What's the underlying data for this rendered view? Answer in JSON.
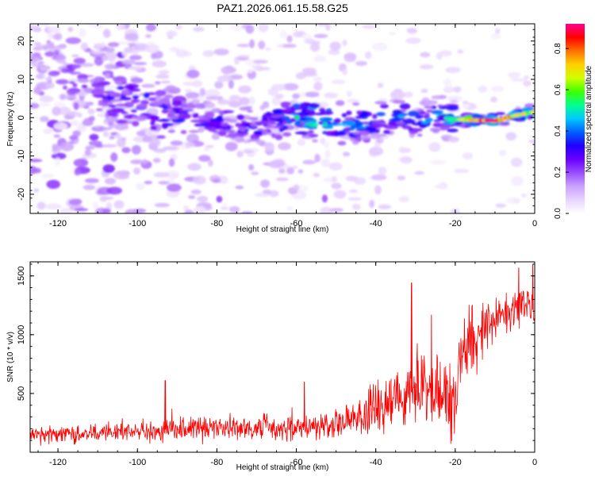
{
  "title": "PAZ1.2026.061.15.58.G25",
  "chart_data": [
    {
      "type": "heatmap",
      "xlabel": "Height of straight line (km)",
      "ylabel": "Frequency (Hz)",
      "xlim": [
        -127,
        0
      ],
      "ylim": [
        -25,
        24.5
      ],
      "xticks": [
        -120,
        -100,
        -80,
        -60,
        -40,
        -20,
        0
      ],
      "yticks": [
        -20,
        -10,
        0,
        10,
        20
      ],
      "colorbar": {
        "label": "Normalized spectral amplitude",
        "range": [
          0,
          0.92
        ],
        "ticks": [
          "0.0",
          "0.2",
          "0.4",
          "0.6",
          "0.8"
        ],
        "tick_values": [
          0.0,
          0.2,
          0.4,
          0.6,
          0.8
        ],
        "colormap": [
          "#ffffff",
          "#e8d4ff",
          "#c9a3ff",
          "#9a4dff",
          "#6a00ff",
          "#2000ff",
          "#0060ff",
          "#00c8ff",
          "#00ff90",
          "#40ff00",
          "#d0ff00",
          "#ffd000",
          "#ff7000",
          "#ff0000",
          "#ff0090"
        ]
      },
      "ridge": {
        "x": [
          -127,
          -115,
          -105,
          -95,
          -85,
          -75,
          -70,
          -65,
          -60,
          -55,
          -50,
          -45,
          -40,
          -35,
          -30,
          -25,
          -20,
          -15,
          -10,
          -5,
          0
        ],
        "y": [
          18,
          9,
          5,
          1.5,
          0,
          -2,
          -3,
          -0.5,
          0.5,
          0,
          -1.5,
          -2,
          -1.5,
          0.5,
          -0.5,
          0.5,
          -0.5,
          -0.7,
          -0.8,
          0.5,
          1.5
        ],
        "amplitude": [
          0.15,
          0.3,
          0.4,
          0.42,
          0.42,
          0.38,
          0.42,
          0.45,
          0.6,
          0.68,
          0.55,
          0.5,
          0.5,
          0.52,
          0.55,
          0.58,
          0.6,
          0.8,
          0.9,
          0.75,
          0.7
        ]
      }
    },
    {
      "type": "line",
      "xlabel": "Height of straight line (km)",
      "ylabel": "SNR (10 * v/v)",
      "xlim": [
        -127,
        0
      ],
      "ylim": [
        0,
        1620
      ],
      "xticks": [
        -120,
        -100,
        -80,
        -60,
        -40,
        -20,
        0
      ],
      "yticks": [
        500,
        1000,
        1500
      ],
      "color": "#ff0000",
      "series": [
        {
          "name": "SNR",
          "envelope_x": [
            -127,
            -120,
            -110,
            -100,
            -90,
            -80,
            -70,
            -60,
            -50,
            -45,
            -40,
            -35,
            -30,
            -25,
            -20,
            -19,
            -15,
            -10,
            -5,
            -2,
            0
          ],
          "mean": [
            150,
            150,
            160,
            180,
            200,
            200,
            200,
            210,
            250,
            300,
            380,
            470,
            520,
            460,
            400,
            800,
            1000,
            1150,
            1200,
            1250,
            1200
          ],
          "spread": [
            55,
            55,
            60,
            70,
            75,
            75,
            75,
            80,
            90,
            120,
            170,
            220,
            260,
            260,
            240,
            200,
            200,
            140,
            130,
            130,
            140
          ],
          "peaks": [
            {
              "x": -93,
              "y": 610
            },
            {
              "x": -58,
              "y": 600
            },
            {
              "x": -31,
              "y": 1440
            },
            {
              "x": -26,
              "y": 1170
            },
            {
              "x": -4,
              "y": 1570
            },
            {
              "x": -0.5,
              "y": 1600
            }
          ]
        }
      ]
    }
  ]
}
